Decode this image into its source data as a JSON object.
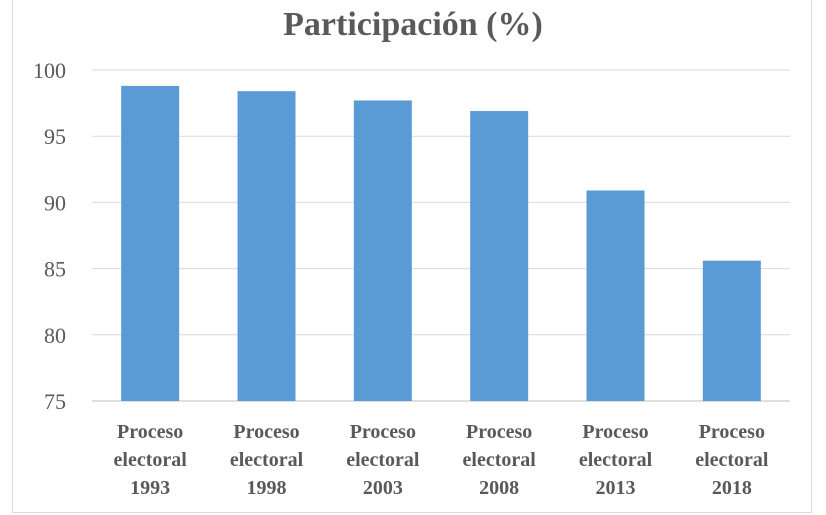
{
  "chart_data": {
    "type": "bar",
    "title": "Participación (%)",
    "xlabel": "",
    "ylabel": "",
    "categories": [
      [
        "Proceso",
        "electoral",
        "1993"
      ],
      [
        "Proceso",
        "electoral",
        "1998"
      ],
      [
        "Proceso",
        "electoral",
        "2003"
      ],
      [
        "Proceso",
        "electoral",
        "2008"
      ],
      [
        "Proceso",
        "electoral",
        "2013"
      ],
      [
        "Proceso",
        "electoral",
        "2018"
      ]
    ],
    "values": [
      98.8,
      98.4,
      97.7,
      96.9,
      90.9,
      85.6
    ],
    "ylim": [
      75,
      100
    ],
    "yticks": [
      75,
      80,
      85,
      90,
      95,
      100
    ],
    "grid": true,
    "legend": "none",
    "bar_color": "#5b9bd5",
    "text_color": "#595959",
    "grid_color": "#d9d9d9"
  }
}
